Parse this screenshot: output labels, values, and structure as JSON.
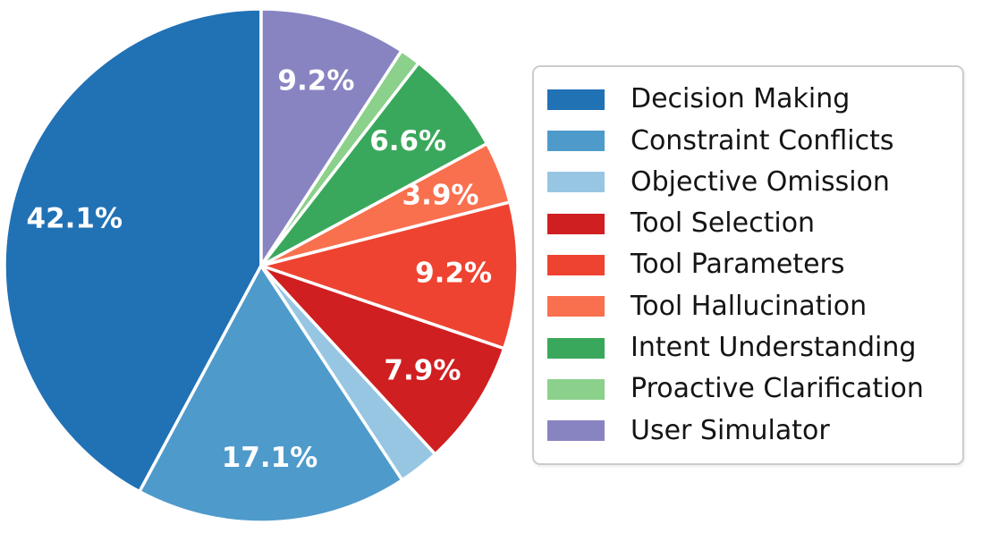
{
  "figure": {
    "background_color": "#ffffff"
  },
  "chart_data": {
    "type": "pie",
    "title": "",
    "legend_position": "right",
    "start_angle_deg": 90,
    "direction": "counterclockwise",
    "slice_border_color": "#ffffff",
    "percent_label_color": "#ffffff",
    "percent_label_distance": 0.75,
    "slices": [
      {
        "label": "Decision Making",
        "value": 42.1,
        "pct_label": "42.1%",
        "color": "#2171b5"
      },
      {
        "label": "Constraint Conflicts",
        "value": 17.1,
        "pct_label": "17.1%",
        "color": "#4e9acb"
      },
      {
        "label": "Objective Omission",
        "value": 2.6,
        "pct_label": null,
        "color": "#97c6e3"
      },
      {
        "label": "Tool Selection",
        "value": 7.9,
        "pct_label": "7.9%",
        "color": "#d01f21"
      },
      {
        "label": "Tool Parameters",
        "value": 9.2,
        "pct_label": "9.2%",
        "color": "#ee4331"
      },
      {
        "label": "Tool Hallucination",
        "value": 3.9,
        "pct_label": "3.9%",
        "color": "#f9704f"
      },
      {
        "label": "Intent Understanding",
        "value": 6.6,
        "pct_label": "6.6%",
        "color": "#3aa85c"
      },
      {
        "label": "Proactive Clarification",
        "value": 1.3,
        "pct_label": null,
        "color": "#8bd08b"
      },
      {
        "label": "User Simulator",
        "value": 9.2,
        "pct_label": "9.2%",
        "color": "#8884c2"
      }
    ]
  }
}
